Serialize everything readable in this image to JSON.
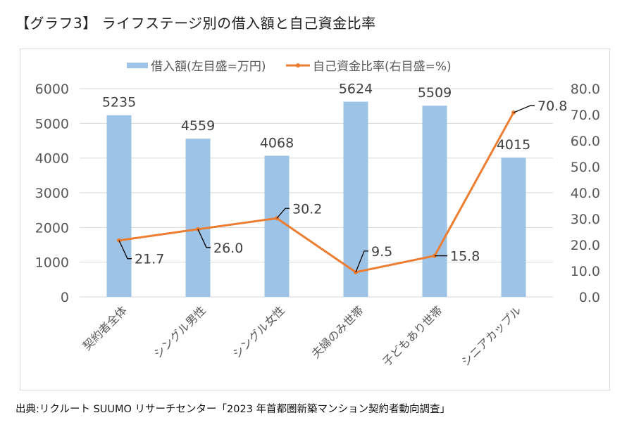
{
  "page": {
    "title": "【グラフ3】 ライフステージ別の借入額と自己資金比率",
    "source": "出典:リクルート SUUMO リサーチセンター「2023 年首都圏新築マンション契約者動向調査」"
  },
  "chart_data": {
    "type": "bar+line",
    "title": "【グラフ3】 ライフステージ別の借入額と自己資金比率",
    "categories": [
      "契約者全体",
      "シングル男性",
      "シングル女性",
      "夫婦のみ世帯",
      "子どもあり世帯",
      "シニアカップル"
    ],
    "series": [
      {
        "name": "借入額(左目盛=万円)",
        "type": "bar",
        "axis": "left",
        "color": "#9dc3e6",
        "values": [
          5235,
          4559,
          4068,
          5624,
          5509,
          4015
        ],
        "labels": [
          "5235",
          "4559",
          "4068",
          "5624",
          "5509",
          "4015"
        ]
      },
      {
        "name": "自己資金比率(右目盛=%)",
        "type": "line",
        "axis": "right",
        "color": "#ed7d31",
        "values": [
          21.7,
          26.0,
          30.2,
          9.5,
          15.8,
          70.8
        ],
        "labels": [
          "21.7",
          "26.0",
          "30.2",
          "9.5",
          "15.8",
          "70.8"
        ]
      }
    ],
    "y_left": {
      "min": 0,
      "max": 6000,
      "step": 1000,
      "ticks": [
        "0",
        "1000",
        "2000",
        "3000",
        "4000",
        "5000",
        "6000"
      ]
    },
    "y_right": {
      "min": 0,
      "max": 80,
      "step": 10,
      "ticks": [
        "0.0",
        "10.0",
        "20.0",
        "30.0",
        "40.0",
        "50.0",
        "60.0",
        "70.0",
        "80.0"
      ]
    },
    "grid": true,
    "legend_position": "top",
    "xlabel": "",
    "ylabel": ""
  }
}
